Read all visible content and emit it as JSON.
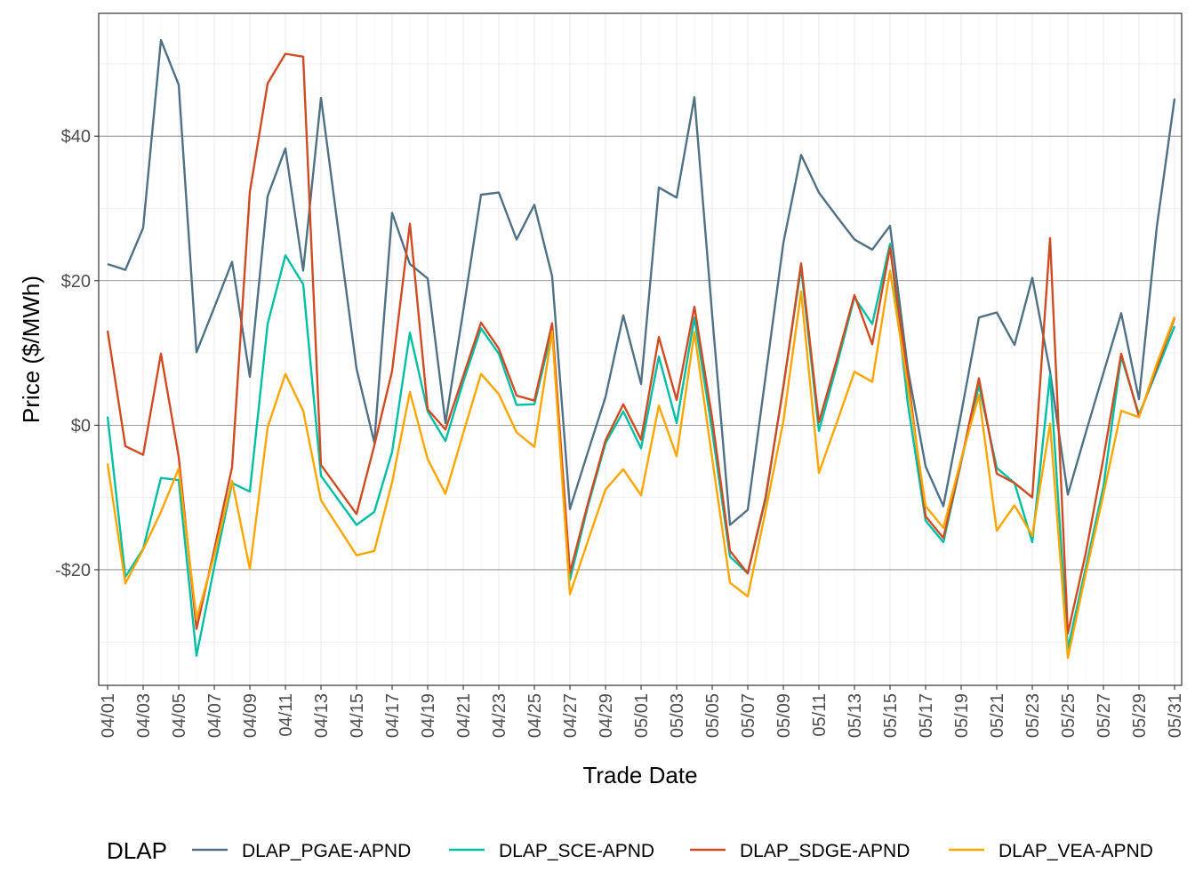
{
  "chart_data": {
    "type": "line",
    "xlabel": "Trade Date",
    "ylabel": "Price ($/MWh)",
    "ylim": [
      -36,
      57
    ],
    "y_ticks": [
      -20,
      0,
      20,
      40
    ],
    "y_tick_labels": [
      "-$20",
      "$0",
      "$20",
      "$40"
    ],
    "grid": true,
    "legend_title": "DLAP",
    "legend_position": "bottom",
    "x": [
      "04/01",
      "04/02",
      "04/03",
      "04/04",
      "04/05",
      "04/06",
      "04/07",
      "04/08",
      "04/09",
      "04/10",
      "04/11",
      "04/12",
      "04/13",
      "04/14",
      "04/15",
      "04/16",
      "04/17",
      "04/18",
      "04/19",
      "04/20",
      "04/21",
      "04/22",
      "04/23",
      "04/24",
      "04/25",
      "04/26",
      "04/27",
      "04/28",
      "04/29",
      "04/30",
      "05/01",
      "05/02",
      "05/03",
      "05/04",
      "05/05",
      "05/06",
      "05/07",
      "05/08",
      "05/09",
      "05/10",
      "05/11",
      "05/12",
      "05/13",
      "05/14",
      "05/15",
      "05/16",
      "05/17",
      "05/18",
      "05/19",
      "05/20",
      "05/21",
      "05/22",
      "05/23",
      "05/24",
      "05/25",
      "05/26",
      "05/27",
      "05/28",
      "05/29",
      "05/30",
      "05/31"
    ],
    "x_tick_labels": [
      "04/01",
      "04/03",
      "04/05",
      "04/07",
      "04/09",
      "04/11",
      "04/13",
      "04/15",
      "04/17",
      "04/19",
      "04/21",
      "04/23",
      "04/25",
      "04/27",
      "04/29",
      "05/01",
      "05/03",
      "05/05",
      "05/07",
      "05/09",
      "05/11",
      "05/13",
      "05/15",
      "05/17",
      "05/19",
      "05/21",
      "05/23",
      "05/25",
      "05/27",
      "05/29",
      "05/31"
    ],
    "series": [
      {
        "name": "DLAP_PGAE-APND",
        "color": "#4f7184",
        "values": [
          22.3,
          21.5,
          27.3,
          53.3,
          47.1,
          10.1,
          16.3,
          22.6,
          6.7,
          31.7,
          38.3,
          21.4,
          45.3,
          26.5,
          7.8,
          -2.4,
          29.4,
          22.3,
          20.3,
          0.3,
          15.8,
          31.9,
          32.2,
          25.7,
          30.5,
          20.6,
          -11.6,
          -3.8,
          3.9,
          15.2,
          5.7,
          32.9,
          31.5,
          45.4,
          15.2,
          -13.8,
          -11.7,
          6.7,
          25.2,
          37.4,
          32.2,
          28.9,
          25.7,
          24.3,
          27.6,
          7.8,
          -5.7,
          -11.2,
          1.6,
          14.9,
          15.6,
          11.1,
          20.4,
          7.4,
          -9.6,
          -1.1,
          7.2,
          15.5,
          3.6,
          27.4,
          45.2
        ]
      },
      {
        "name": "DLAP_SCE-APND",
        "color": "#00bfa5",
        "values": [
          1.2,
          -21.0,
          -17.1,
          -7.3,
          -7.6,
          -31.9,
          -19.6,
          -8.0,
          -9.2,
          14.0,
          23.5,
          19.5,
          -7.0,
          -10.4,
          -13.8,
          -12.0,
          -3.7,
          12.8,
          1.9,
          -2.2,
          6.0,
          13.4,
          9.9,
          2.8,
          2.9,
          13.2,
          -21.4,
          -11.3,
          -2.5,
          1.9,
          -3.2,
          9.5,
          0.3,
          14.9,
          -0.8,
          -18.2,
          -20.5,
          -10.3,
          5.4,
          21.8,
          -0.8,
          8.2,
          17.7,
          14.0,
          25.1,
          3.0,
          -13.2,
          -16.2,
          -5.1,
          5.5,
          -5.9,
          -8.0,
          -16.2,
          7.0,
          -30.9,
          -19.8,
          -8.5,
          9.5,
          1.5,
          7.5,
          13.7
        ]
      },
      {
        "name": "DLAP_SDGE-APND",
        "color": "#d04b21",
        "values": [
          13.1,
          -2.9,
          -4.1,
          9.9,
          -4.4,
          -28.2,
          -17.2,
          -5.8,
          32.3,
          47.3,
          51.4,
          51.0,
          -5.5,
          -8.9,
          -12.3,
          -2.8,
          7.5,
          27.9,
          2.2,
          -0.6,
          6.8,
          14.2,
          10.6,
          4.1,
          3.4,
          14.1,
          -20.4,
          -10.9,
          -2.1,
          2.9,
          -2.0,
          12.2,
          3.5,
          16.4,
          0.9,
          -17.4,
          -20.5,
          -10.0,
          5.2,
          22.4,
          0.4,
          9.0,
          18.0,
          11.2,
          24.6,
          6.8,
          -12.6,
          -15.6,
          -5.0,
          6.5,
          -6.7,
          -8.0,
          -10.0,
          25.9,
          -28.8,
          -17.8,
          -4.6,
          9.9,
          1.2,
          8.0,
          14.8
        ]
      },
      {
        "name": "DLAP_VEA-APND",
        "color": "#ffa500",
        "values": [
          -5.3,
          -21.9,
          -17.2,
          -12.0,
          -6.0,
          -26.8,
          -18.0,
          -7.7,
          -19.9,
          -0.3,
          7.1,
          2.0,
          -10.4,
          -14.2,
          -18.0,
          -17.4,
          -7.9,
          4.6,
          -4.7,
          -9.5,
          -1.1,
          7.1,
          4.3,
          -1.0,
          -3.0,
          13.0,
          -23.4,
          -16.1,
          -8.9,
          -6.1,
          -9.7,
          2.7,
          -4.3,
          12.9,
          -4.6,
          -21.8,
          -23.7,
          -11.9,
          0.5,
          18.5,
          -6.6,
          0.3,
          7.4,
          6.0,
          21.4,
          5.4,
          -11.2,
          -14.2,
          -4.7,
          4.2,
          -14.6,
          -11.1,
          -15.3,
          0.2,
          -32.2,
          -20.6,
          -9.6,
          2.0,
          1.1,
          8.5,
          15.0
        ]
      }
    ]
  }
}
